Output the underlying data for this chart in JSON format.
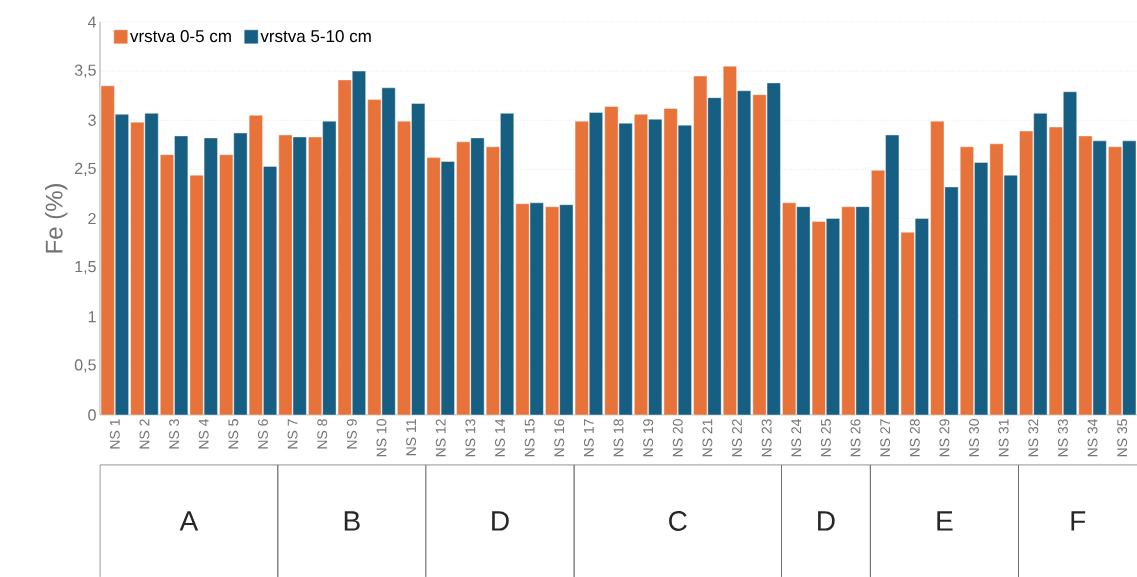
{
  "chart_data": {
    "type": "bar",
    "ylabel": "Fe (%)",
    "categories": [
      "NS 1",
      "NS 2",
      "NS 3",
      "NS 4",
      "NS 5",
      "NS 6",
      "NS 7",
      "NS 8",
      "NS 9",
      "NS 10",
      "NS 11",
      "NS 12",
      "NS 13",
      "NS 14",
      "NS 15",
      "NS 16",
      "NS 17",
      "NS 18",
      "NS 19",
      "NS 20",
      "NS 21",
      "NS 22",
      "NS 23",
      "NS 24",
      "NS 25",
      "NS 26",
      "NS 27",
      "NS 28",
      "NS 29",
      "NS 30",
      "NS 31",
      "NS 32",
      "NS 33",
      "NS 34",
      "NS 35"
    ],
    "series": [
      {
        "name": "vrstva 0-5 cm",
        "color": "#e8733a",
        "values": [
          3.35,
          2.98,
          2.65,
          2.44,
          2.65,
          3.05,
          2.85,
          2.83,
          3.41,
          3.21,
          2.99,
          2.62,
          2.78,
          2.73,
          2.15,
          2.12,
          2.99,
          3.14,
          3.06,
          3.12,
          3.45,
          3.55,
          3.26,
          2.16,
          1.97,
          2.12,
          2.49,
          1.86,
          2.99,
          2.73,
          2.76,
          2.89,
          2.93,
          2.84,
          2.73
        ]
      },
      {
        "name": "vrstva 5-10 cm",
        "color": "#175f82",
        "values": [
          3.06,
          3.07,
          2.84,
          2.82,
          2.87,
          2.53,
          2.83,
          2.99,
          3.5,
          3.33,
          3.17,
          2.58,
          2.82,
          3.07,
          2.16,
          2.14,
          3.08,
          2.97,
          3.01,
          2.95,
          3.23,
          3.3,
          3.38,
          2.12,
          2.0,
          2.12,
          2.85,
          2.0,
          2.32,
          2.57,
          2.44,
          3.07,
          3.29,
          2.79,
          2.79
        ]
      }
    ],
    "ylim": [
      0,
      4
    ],
    "yticks": [
      0,
      {
        "value": 0.5,
        "label": "0,5"
      },
      1,
      {
        "value": 1.5,
        "label": "1,5"
      },
      2,
      {
        "value": 2.5,
        "label": "2,5"
      },
      3,
      {
        "value": 3.5,
        "label": "3,5"
      },
      4
    ],
    "grid": "y",
    "legend": "top left",
    "annotations": [
      "A",
      "B",
      "D",
      "C",
      "D",
      "E",
      "F"
    ]
  }
}
